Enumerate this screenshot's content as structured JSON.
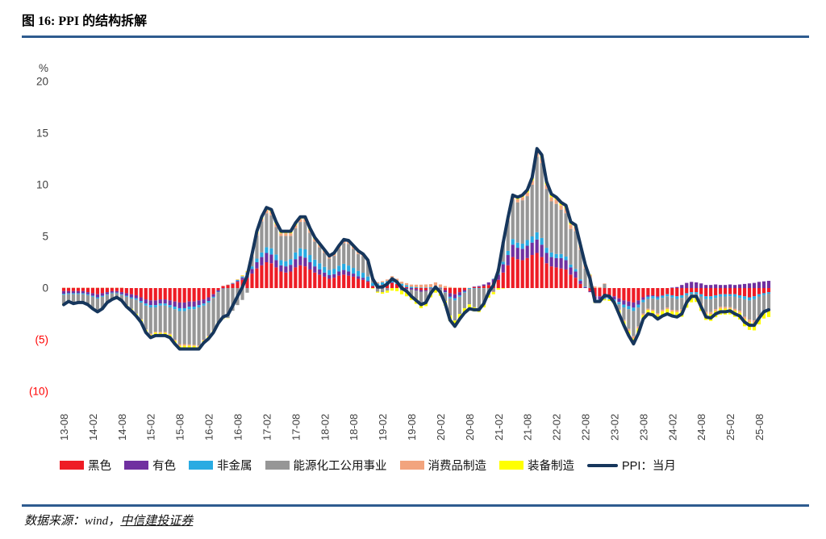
{
  "page": {
    "title": "图 16: PPI 的结构拆解",
    "source_prefix": "数据来源：wind，",
    "source_org": "中信建投证券"
  },
  "chart_data": {
    "type": "bar",
    "subtype": "stacked-bar-with-line",
    "title": "PPI 的结构拆解",
    "unit_label": "%",
    "ylim": [
      -10,
      20
    ],
    "grid": false,
    "legend_position": "bottom",
    "n_points": 147,
    "x_start": "2013-08",
    "x_end": "2025-10",
    "tick_every": 6,
    "x_tick_labels": [
      "13-08",
      "14-02",
      "14-08",
      "15-02",
      "15-08",
      "16-02",
      "16-08",
      "17-02",
      "17-08",
      "18-02",
      "18-08",
      "19-02",
      "19-08",
      "20-02",
      "20-08",
      "21-02",
      "21-08",
      "22-02",
      "22-08",
      "23-02",
      "23-08",
      "24-02",
      "24-08",
      "25-02",
      "25-08"
    ],
    "y_ticks": [
      {
        "v": 20,
        "label": "20",
        "color": "#3f3f3f"
      },
      {
        "v": 15,
        "label": "15",
        "color": "#3f3f3f"
      },
      {
        "v": 10,
        "label": "10",
        "color": "#3f3f3f"
      },
      {
        "v": 5,
        "label": "5",
        "color": "#3f3f3f"
      },
      {
        "v": 0,
        "label": "0",
        "color": "#3f3f3f"
      },
      {
        "v": -5,
        "label": "(5)",
        "color": "#ff0000"
      },
      {
        "v": -10,
        "label": "(10)",
        "color": "#ff0000"
      }
    ],
    "series": [
      {
        "name": "黑色",
        "color": "#ee1c25",
        "values": [
          -0.3,
          -0.3,
          -0.3,
          -0.3,
          -0.3,
          -0.4,
          -0.5,
          -0.6,
          -0.5,
          -0.4,
          -0.3,
          -0.3,
          -0.4,
          -0.5,
          -0.6,
          -0.7,
          -0.9,
          -1.1,
          -1.2,
          -1.2,
          -1.1,
          -1.1,
          -1.2,
          -1.3,
          -1.4,
          -1.4,
          -1.3,
          -1.3,
          -1.2,
          -1.1,
          -0.9,
          -0.6,
          -0.2,
          0.2,
          0.3,
          0.4,
          0.6,
          0.8,
          1.0,
          1.4,
          1.9,
          2.2,
          2.5,
          2.4,
          2.0,
          1.6,
          1.5,
          1.6,
          2.0,
          2.2,
          2.1,
          1.8,
          1.5,
          1.3,
          1.1,
          0.9,
          1.0,
          1.2,
          1.3,
          1.2,
          1.1,
          0.9,
          0.8,
          0.6,
          0.2,
          0.2,
          0.3,
          0.4,
          0.5,
          0.4,
          0.2,
          0.1,
          0.0,
          -0.1,
          -0.2,
          -0.2,
          0.0,
          0.1,
          0.0,
          -0.2,
          -0.5,
          -0.6,
          -0.4,
          -0.2,
          0.0,
          0.1,
          0.1,
          0.2,
          0.3,
          0.5,
          0.8,
          1.5,
          2.2,
          3.0,
          2.8,
          2.7,
          2.9,
          3.2,
          3.4,
          3.0,
          2.4,
          2.1,
          2.0,
          1.9,
          1.8,
          1.3,
          1.0,
          0.4,
          0.0,
          -0.3,
          -0.8,
          -0.8,
          -0.7,
          -0.7,
          -0.8,
          -1.0,
          -1.2,
          -1.3,
          -1.4,
          -1.2,
          -0.9,
          -0.7,
          -0.7,
          -0.8,
          -0.7,
          -0.6,
          -0.7,
          -0.8,
          -0.7,
          -0.5,
          -0.4,
          -0.4,
          -0.6,
          -0.8,
          -0.8,
          -0.7,
          -0.6,
          -0.6,
          -0.6,
          -0.6,
          -0.7,
          -0.8,
          -0.9,
          -0.8,
          -0.6,
          -0.5,
          -0.4
        ]
      },
      {
        "name": "有色",
        "color": "#7030a0",
        "values": [
          -0.25,
          -0.2,
          -0.2,
          -0.2,
          -0.2,
          -0.2,
          -0.25,
          -0.3,
          -0.25,
          -0.2,
          -0.15,
          -0.15,
          -0.2,
          -0.25,
          -0.3,
          -0.3,
          -0.35,
          -0.4,
          -0.45,
          -0.45,
          -0.4,
          -0.4,
          -0.45,
          -0.5,
          -0.55,
          -0.55,
          -0.5,
          -0.5,
          -0.45,
          -0.4,
          -0.35,
          -0.25,
          -0.15,
          -0.05,
          0.0,
          0.05,
          0.1,
          0.2,
          0.3,
          0.45,
          0.6,
          0.8,
          0.9,
          0.85,
          0.7,
          0.6,
          0.6,
          0.65,
          0.8,
          0.9,
          0.85,
          0.7,
          0.6,
          0.5,
          0.4,
          0.35,
          0.35,
          0.4,
          0.45,
          0.4,
          0.3,
          0.25,
          0.2,
          0.1,
          0.0,
          -0.05,
          -0.05,
          0.0,
          0.05,
          0.0,
          -0.05,
          -0.1,
          -0.15,
          -0.15,
          -0.15,
          -0.1,
          -0.05,
          0.0,
          -0.05,
          -0.2,
          -0.35,
          -0.4,
          -0.3,
          -0.15,
          0.0,
          0.05,
          0.1,
          0.15,
          0.25,
          0.35,
          0.5,
          0.8,
          1.0,
          1.2,
          1.1,
          1.1,
          1.2,
          1.2,
          1.3,
          1.2,
          1.0,
          0.9,
          0.9,
          1.0,
          0.9,
          0.7,
          0.6,
          0.3,
          0.1,
          -0.1,
          -0.3,
          -0.3,
          -0.25,
          -0.25,
          -0.3,
          -0.35,
          -0.4,
          -0.45,
          -0.5,
          -0.4,
          -0.25,
          -0.15,
          -0.1,
          -0.1,
          -0.05,
          0.0,
          0.05,
          0.1,
          0.3,
          0.5,
          0.6,
          0.55,
          0.45,
          0.3,
          0.3,
          0.35,
          0.3,
          0.3,
          0.35,
          0.3,
          0.35,
          0.4,
          0.45,
          0.5,
          0.6,
          0.65,
          0.7
        ]
      },
      {
        "name": "非金属",
        "color": "#29abe2",
        "values": [
          -0.1,
          -0.1,
          -0.1,
          -0.1,
          -0.1,
          -0.1,
          -0.1,
          -0.12,
          -0.1,
          -0.08,
          -0.06,
          -0.06,
          -0.08,
          -0.1,
          -0.12,
          -0.14,
          -0.16,
          -0.2,
          -0.22,
          -0.22,
          -0.2,
          -0.2,
          -0.22,
          -0.25,
          -0.28,
          -0.28,
          -0.26,
          -0.25,
          -0.22,
          -0.2,
          -0.16,
          -0.1,
          -0.05,
          0.0,
          0.02,
          0.04,
          0.08,
          0.12,
          0.18,
          0.25,
          0.35,
          0.45,
          0.55,
          0.6,
          0.55,
          0.5,
          0.5,
          0.55,
          0.65,
          0.75,
          0.8,
          0.7,
          0.65,
          0.6,
          0.55,
          0.5,
          0.52,
          0.56,
          0.6,
          0.58,
          0.55,
          0.5,
          0.48,
          0.42,
          0.3,
          0.25,
          0.25,
          0.28,
          0.3,
          0.28,
          0.22,
          0.18,
          0.12,
          0.08,
          0.05,
          0.05,
          0.08,
          0.1,
          0.05,
          -0.05,
          -0.15,
          -0.2,
          -0.15,
          -0.1,
          -0.08,
          -0.06,
          -0.05,
          -0.02,
          0.0,
          0.05,
          0.1,
          0.25,
          0.4,
          0.55,
          0.5,
          0.5,
          0.55,
          0.6,
          0.7,
          0.65,
          0.5,
          0.45,
          0.4,
          0.4,
          0.35,
          0.28,
          0.25,
          0.15,
          0.05,
          0.0,
          -0.1,
          -0.12,
          -0.12,
          -0.15,
          -0.18,
          -0.22,
          -0.28,
          -0.3,
          -0.32,
          -0.28,
          -0.22,
          -0.2,
          -0.2,
          -0.22,
          -0.2,
          -0.2,
          -0.22,
          -0.25,
          -0.25,
          -0.2,
          -0.18,
          -0.18,
          -0.22,
          -0.26,
          -0.28,
          -0.25,
          -0.22,
          -0.22,
          -0.2,
          -0.22,
          -0.25,
          -0.28,
          -0.3,
          -0.28,
          -0.22,
          -0.18,
          -0.15
        ]
      },
      {
        "name": "能源化工公用事业",
        "color": "#969696",
        "values": [
          -0.85,
          -0.6,
          -0.8,
          -0.7,
          -0.7,
          -0.8,
          -1.05,
          -1.15,
          -1.05,
          -0.65,
          -0.55,
          -0.35,
          -0.45,
          -0.8,
          -1.0,
          -1.35,
          -1.6,
          -2.3,
          -2.55,
          -2.35,
          -2.55,
          -2.55,
          -2.55,
          -2.95,
          -3.2,
          -3.2,
          -3.4,
          -3.45,
          -3.7,
          -3.3,
          -3.2,
          -3.15,
          -2.9,
          -2.9,
          -2.9,
          -2.2,
          -1.65,
          -1.15,
          -0.45,
          0.95,
          2.25,
          3.0,
          3.3,
          3.2,
          2.65,
          2.35,
          2.45,
          2.25,
          2.35,
          2.55,
          2.65,
          2.15,
          1.75,
          1.55,
          1.35,
          1.1,
          1.25,
          1.65,
          2.0,
          2.1,
          1.85,
          1.65,
          1.6,
          1.4,
          0.35,
          -0.3,
          -0.35,
          -0.25,
          0.1,
          0.0,
          -0.2,
          -0.3,
          -0.55,
          -0.8,
          -1.1,
          -1.0,
          -0.45,
          -0.1,
          -0.3,
          -0.8,
          -1.65,
          -1.95,
          -1.65,
          -1.5,
          -1.5,
          -1.8,
          -1.9,
          -1.5,
          -0.6,
          -0.35,
          0.45,
          1.8,
          2.95,
          3.8,
          3.9,
          4.2,
          4.25,
          5.0,
          7.3,
          7.25,
          5.7,
          4.95,
          4.85,
          4.3,
          4.2,
          3.45,
          3.65,
          2.85,
          1.75,
          1.0,
          -0.2,
          -0.1,
          0.4,
          0.0,
          0.0,
          -0.5,
          -1.2,
          -1.9,
          -2.45,
          -1.85,
          -1.1,
          -0.95,
          -1.1,
          -1.3,
          -1.15,
          -1.1,
          -1.2,
          -1.1,
          -1.1,
          -0.55,
          -0.2,
          -0.15,
          -0.7,
          -1.25,
          -1.25,
          -1.1,
          -1.0,
          -1.0,
          -1.05,
          -1.2,
          -1.25,
          -1.7,
          -1.85,
          -2.05,
          -1.85,
          -1.5,
          -1.55
        ]
      },
      {
        "name": "消费品制造",
        "color": "#f2a47e",
        "values": [
          0.05,
          0.05,
          0.05,
          0.05,
          0.05,
          0.05,
          0.05,
          0.05,
          0.05,
          0.05,
          0.05,
          0.05,
          0.05,
          0.0,
          0.0,
          0.0,
          -0.05,
          -0.05,
          -0.1,
          -0.1,
          -0.1,
          -0.1,
          -0.1,
          -0.12,
          -0.15,
          -0.15,
          -0.12,
          -0.1,
          -0.1,
          -0.1,
          -0.08,
          -0.05,
          0.0,
          0.0,
          0.02,
          0.03,
          0.05,
          0.08,
          0.1,
          0.15,
          0.2,
          0.25,
          0.3,
          0.3,
          0.28,
          0.25,
          0.25,
          0.25,
          0.28,
          0.3,
          0.3,
          0.28,
          0.25,
          0.22,
          0.2,
          0.18,
          0.18,
          0.2,
          0.22,
          0.22,
          0.2,
          0.2,
          0.18,
          0.16,
          0.12,
          0.12,
          0.12,
          0.15,
          0.2,
          0.22,
          0.2,
          0.2,
          0.22,
          0.25,
          0.28,
          0.3,
          0.3,
          0.35,
          0.3,
          0.2,
          0.1,
          0.05,
          0.05,
          0.05,
          0.02,
          0.0,
          -0.02,
          -0.05,
          -0.08,
          -0.05,
          0.0,
          0.1,
          0.2,
          0.3,
          0.3,
          0.3,
          0.35,
          0.4,
          0.45,
          0.45,
          0.4,
          0.4,
          0.4,
          0.42,
          0.45,
          0.42,
          0.4,
          0.35,
          0.3,
          0.25,
          0.15,
          0.1,
          0.05,
          0.0,
          -0.05,
          -0.1,
          -0.15,
          -0.2,
          -0.22,
          -0.2,
          -0.15,
          -0.12,
          -0.12,
          -0.15,
          -0.15,
          -0.15,
          -0.15,
          -0.18,
          -0.18,
          -0.15,
          -0.12,
          -0.12,
          -0.15,
          -0.18,
          -0.2,
          -0.18,
          -0.17,
          -0.17,
          -0.15,
          -0.17,
          -0.2,
          -0.22,
          -0.25,
          -0.25,
          -0.2,
          -0.17,
          -0.15
        ]
      },
      {
        "name": "装备制造",
        "color": "#ffff00",
        "values": [
          -0.15,
          -0.15,
          -0.15,
          -0.15,
          -0.15,
          -0.15,
          -0.15,
          -0.18,
          -0.15,
          -0.12,
          -0.1,
          -0.1,
          -0.12,
          -0.15,
          -0.18,
          -0.2,
          -0.22,
          -0.25,
          -0.28,
          -0.28,
          -0.25,
          -0.25,
          -0.28,
          -0.3,
          -0.32,
          -0.32,
          -0.3,
          -0.28,
          -0.25,
          -0.22,
          -0.2,
          -0.15,
          -0.1,
          -0.05,
          -0.02,
          0.0,
          0.02,
          0.05,
          0.08,
          0.12,
          0.18,
          0.2,
          0.25,
          0.25,
          0.22,
          0.2,
          0.18,
          0.18,
          0.2,
          0.22,
          0.22,
          0.18,
          0.15,
          0.12,
          0.1,
          0.08,
          0.08,
          0.1,
          0.12,
          0.12,
          0.1,
          0.08,
          0.06,
          0.02,
          -0.05,
          -0.1,
          -0.15,
          -0.2,
          -0.25,
          -0.3,
          -0.35,
          -0.4,
          -0.45,
          -0.48,
          -0.5,
          -0.45,
          -0.4,
          -0.35,
          -0.4,
          -0.45,
          -0.55,
          -0.6,
          -0.55,
          -0.5,
          -0.45,
          -0.4,
          -0.35,
          -0.3,
          -0.25,
          -0.2,
          -0.15,
          -0.05,
          0.05,
          0.15,
          0.2,
          0.22,
          0.25,
          0.3,
          0.35,
          0.35,
          0.3,
          0.28,
          0.25,
          0.28,
          0.3,
          0.25,
          0.22,
          0.15,
          0.1,
          0.05,
          -0.05,
          -0.1,
          -0.12,
          -0.15,
          -0.2,
          -0.3,
          -0.4,
          -0.45,
          -0.5,
          -0.45,
          -0.4,
          -0.38,
          -0.4,
          -0.45,
          -0.45,
          -0.45,
          -0.5,
          -0.55,
          -0.55,
          -0.5,
          -0.48,
          -0.5,
          -0.55,
          -0.6,
          -0.65,
          -0.6,
          -0.58,
          -0.58,
          -0.55,
          -0.6,
          -0.65,
          -0.7,
          -0.75,
          -0.72,
          -0.65,
          -0.6,
          -0.55
        ]
      }
    ],
    "line": {
      "name": "PPI：当月",
      "color": "#16365c",
      "values": [
        -1.6,
        -1.3,
        -1.5,
        -1.4,
        -1.4,
        -1.6,
        -2.0,
        -2.3,
        -2.0,
        -1.4,
        -1.1,
        -0.9,
        -1.2,
        -1.8,
        -2.2,
        -2.7,
        -3.3,
        -4.3,
        -4.8,
        -4.6,
        -4.6,
        -4.6,
        -4.8,
        -5.4,
        -5.9,
        -5.9,
        -5.9,
        -5.9,
        -5.9,
        -5.3,
        -4.9,
        -4.3,
        -3.4,
        -2.8,
        -2.6,
        -1.7,
        -0.8,
        0.1,
        1.2,
        3.3,
        5.5,
        6.9,
        7.8,
        7.6,
        6.4,
        5.5,
        5.5,
        5.5,
        6.3,
        6.9,
        6.9,
        5.8,
        4.9,
        4.3,
        3.7,
        3.1,
        3.4,
        4.1,
        4.7,
        4.6,
        4.1,
        3.6,
        3.3,
        2.7,
        0.9,
        0.1,
        0.1,
        0.4,
        0.9,
        0.6,
        0.0,
        -0.3,
        -0.8,
        -1.2,
        -1.6,
        -1.4,
        -0.5,
        0.1,
        -0.4,
        -1.5,
        -3.1,
        -3.7,
        -3.0,
        -2.4,
        -2.0,
        -2.1,
        -2.1,
        -1.5,
        -0.4,
        0.3,
        1.7,
        4.4,
        6.8,
        9.0,
        8.8,
        9.0,
        9.5,
        10.7,
        13.5,
        12.9,
        10.3,
        9.1,
        8.8,
        8.3,
        8.0,
        6.4,
        6.1,
        4.2,
        2.3,
        0.9,
        -1.3,
        -1.3,
        -0.7,
        -0.8,
        -1.4,
        -2.5,
        -3.6,
        -4.6,
        -5.4,
        -4.4,
        -3.0,
        -2.5,
        -2.6,
        -3.0,
        -2.7,
        -2.5,
        -2.7,
        -2.8,
        -2.5,
        -1.4,
        -0.8,
        -0.8,
        -1.8,
        -2.8,
        -2.9,
        -2.5,
        -2.3,
        -2.3,
        -2.2,
        -2.5,
        -2.7,
        -3.3,
        -3.6,
        -3.6,
        -2.9,
        -2.3,
        -2.1
      ]
    }
  }
}
